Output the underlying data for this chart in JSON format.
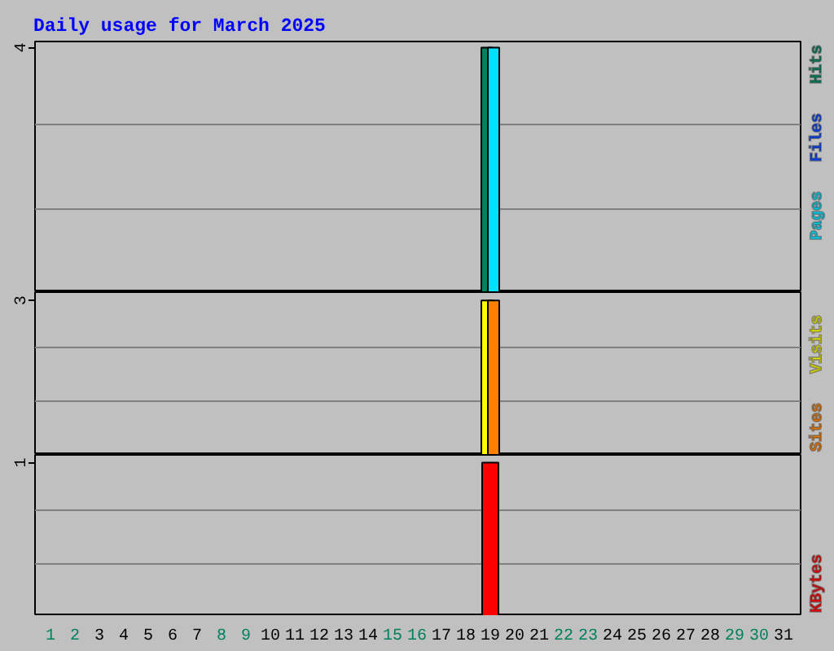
{
  "chart_data": [
    {
      "type": "bar",
      "title": "Daily usage for March 2025",
      "x": [
        "2025-03-19"
      ],
      "series": [
        {
          "name": "Hits",
          "color": "#00805c",
          "values": [
            4
          ]
        },
        {
          "name": "Files",
          "color": "#0040ff",
          "values": [
            null
          ]
        },
        {
          "name": "Pages",
          "color": "#00e0ff",
          "values": [
            4
          ]
        }
      ],
      "xlim": [
        "2025-02-28T08:48",
        "2025-03-31T16:48"
      ],
      "ylim": [
        0,
        4.1
      ],
      "yticks": [
        {
          "value": 1.37,
          "label": null
        },
        {
          "value": 2.74,
          "label": null
        },
        4
      ],
      "grid": "y",
      "legend": "top right",
      "tick_labels": "y"
    },
    {
      "type": "bar",
      "x": [
        "2025-03-19"
      ],
      "series": [
        {
          "name": "Visits",
          "color": "#ffff00",
          "values": [
            3
          ]
        },
        {
          "name": "Sites",
          "color": "#ff8000",
          "values": [
            3
          ]
        }
      ],
      "xlim": [
        "2025-02-28T08:48",
        "2025-03-31T16:48"
      ],
      "ylim": [
        0,
        3.16
      ],
      "yticks": [
        {
          "value": 1.04,
          "label": null
        },
        {
          "value": 2.09,
          "label": null
        },
        3
      ],
      "grid": "y",
      "legend": "bottom right",
      "tick_labels": "y"
    },
    {
      "type": "bar",
      "x": [
        "2025-03-19"
      ],
      "series": [
        {
          "name": "KBytes",
          "color": "#ff0000",
          "values": [
            1
          ]
        }
      ],
      "xlim": [
        "2025-02-28T08:48",
        "2025-03-31T16:48"
      ],
      "xticks": [
        {
          "value": "2025-03-01",
          "label": "1"
        },
        {
          "value": "2025-03-02",
          "label": "2"
        },
        {
          "value": "2025-03-03",
          "label": "3"
        },
        {
          "value": "2025-03-04",
          "label": "4"
        },
        {
          "value": "2025-03-05",
          "label": "5"
        },
        {
          "value": "2025-03-06",
          "label": "6"
        },
        {
          "value": "2025-03-07",
          "label": "7"
        },
        {
          "value": "2025-03-08",
          "label": "8"
        },
        {
          "value": "2025-03-09",
          "label": "9"
        },
        {
          "value": "2025-03-10",
          "label": "10"
        },
        {
          "value": "2025-03-11",
          "label": "11"
        },
        {
          "value": "2025-03-12",
          "label": "12"
        },
        {
          "value": "2025-03-13",
          "label": "13"
        },
        {
          "value": "2025-03-14",
          "label": "14"
        },
        {
          "value": "2025-03-15",
          "label": "15"
        },
        {
          "value": "2025-03-16",
          "label": "16"
        },
        {
          "value": "2025-03-17",
          "label": "17"
        },
        {
          "value": "2025-03-18",
          "label": "18"
        },
        {
          "value": "2025-03-19",
          "label": "19"
        },
        {
          "value": "2025-03-20",
          "label": "20"
        },
        {
          "value": "2025-03-21",
          "label": "21"
        },
        {
          "value": "2025-03-22",
          "label": "22"
        },
        {
          "value": "2025-03-23",
          "label": "23"
        },
        {
          "value": "2025-03-24",
          "label": "24"
        },
        {
          "value": "2025-03-25",
          "label": "25"
        },
        {
          "value": "2025-03-26",
          "label": "26"
        },
        {
          "value": "2025-03-27",
          "label": "27"
        },
        {
          "value": "2025-03-28",
          "label": "28"
        },
        {
          "value": "2025-03-29",
          "label": "29"
        },
        {
          "value": "2025-03-30",
          "label": "30"
        },
        {
          "value": "2025-03-31",
          "label": "31"
        }
      ],
      "ylim": [
        0,
        1.05
      ],
      "yticks": [
        {
          "value": 0.34,
          "label": null
        },
        {
          "value": 0.69,
          "label": null
        },
        1
      ],
      "grid": "y",
      "legend": "bottom right"
    }
  ]
}
